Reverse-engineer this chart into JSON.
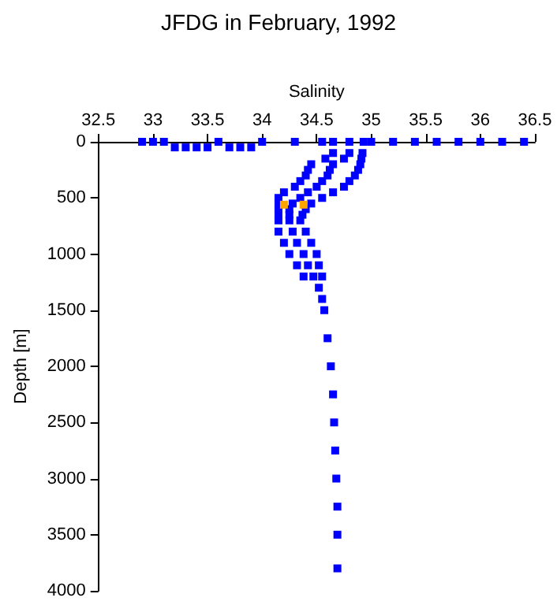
{
  "chart_data": {
    "type": "scatter",
    "title": "JFDG in February, 1992",
    "xlabel": "Salinity",
    "ylabel": "Depth [m]",
    "xlim": [
      32.5,
      36.5
    ],
    "xticks": [
      32.5,
      33,
      33.5,
      34,
      34.5,
      35,
      35.5,
      36,
      36.5
    ],
    "ylim": [
      4000,
      0
    ],
    "yticks": [
      0,
      500,
      1000,
      1500,
      2000,
      2500,
      3000,
      3500,
      4000
    ],
    "grid": false,
    "marker": "square",
    "series": [
      {
        "color": "#0000ff",
        "x": [
          32.9,
          33.0,
          33.1,
          33.2,
          33.3,
          33.4,
          33.5,
          33.6,
          33.7,
          33.8,
          33.9,
          34.0,
          34.3,
          34.55,
          35.0,
          35.2,
          35.4,
          35.6,
          35.8,
          36.0,
          36.2,
          36.4,
          34.65,
          34.8,
          34.93,
          34.65,
          34.8,
          34.92,
          34.58,
          34.75,
          34.91,
          34.45,
          34.65,
          34.9,
          34.42,
          34.62,
          34.88,
          34.4,
          34.6,
          34.85,
          34.35,
          34.55,
          34.8,
          34.3,
          34.5,
          34.75,
          34.2,
          34.42,
          34.65,
          34.15,
          34.35,
          34.55,
          34.15,
          34.28,
          34.45,
          34.15,
          34.25,
          34.4,
          34.15,
          34.25,
          34.37,
          34.15,
          34.25,
          34.35,
          34.15,
          34.28,
          34.4,
          34.2,
          34.32,
          34.45,
          34.25,
          34.38,
          34.5,
          34.32,
          34.42,
          34.52,
          34.38,
          34.47,
          34.55,
          34.52,
          34.55,
          34.57,
          34.6,
          34.63,
          34.65,
          34.66,
          34.67,
          34.68,
          34.69,
          34.69,
          34.69
        ],
        "values": [
          0,
          0,
          0,
          50,
          50,
          50,
          50,
          0,
          50,
          50,
          50,
          0,
          0,
          0,
          0,
          0,
          0,
          0,
          0,
          0,
          0,
          0,
          0,
          0,
          0,
          100,
          100,
          100,
          150,
          150,
          150,
          200,
          200,
          200,
          250,
          250,
          250,
          300,
          300,
          300,
          350,
          350,
          350,
          400,
          400,
          400,
          450,
          450,
          450,
          500,
          500,
          500,
          550,
          550,
          550,
          600,
          600,
          600,
          650,
          650,
          650,
          700,
          700,
          700,
          800,
          800,
          800,
          900,
          900,
          900,
          1000,
          1000,
          1000,
          1100,
          1100,
          1100,
          1200,
          1200,
          1200,
          1300,
          1400,
          1500,
          1750,
          2000,
          2250,
          2500,
          2750,
          3000,
          3250,
          3500,
          3800
        ]
      },
      {
        "color": "#ffa500",
        "x": [
          34.2,
          34.38
        ],
        "values": [
          560,
          560
        ]
      }
    ]
  }
}
